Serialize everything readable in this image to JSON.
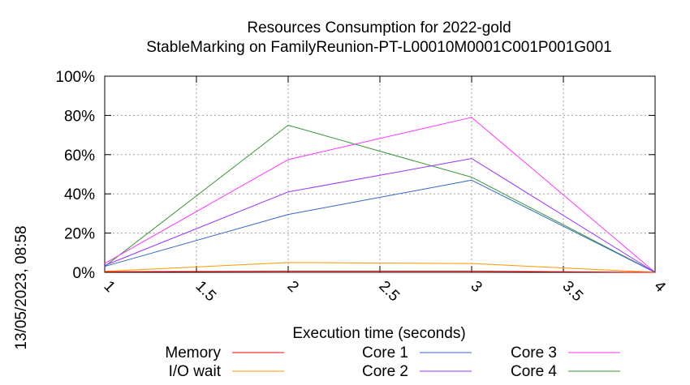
{
  "chart_data": {
    "type": "line",
    "title": "Resources Consumption for 2022-gold",
    "subtitle": "StableMarking on FamilyReunion-PT-L00010M0001C001P001G001",
    "xlabel": "Execution time (seconds)",
    "ylabel": "",
    "side_label": "13/05/2023, 08:58",
    "xlim": [
      1,
      4
    ],
    "ylim": [
      0,
      100
    ],
    "x_ticks": [
      "1",
      "1.5",
      "2",
      "2.5",
      "3",
      "3.5",
      "4"
    ],
    "x_tick_values": [
      1,
      1.5,
      2,
      2.5,
      3,
      3.5,
      4
    ],
    "y_ticks": [
      "0%",
      "20%",
      "40%",
      "60%",
      "80%",
      "100%"
    ],
    "y_tick_values": [
      0,
      20,
      40,
      60,
      80,
      100
    ],
    "grid": true,
    "legend_position": "bottom",
    "x": [
      1,
      2,
      3,
      4
    ],
    "series": [
      {
        "name": "Memory",
        "color": "#ff0000",
        "values": [
          0.3,
          0.6,
          0.6,
          0
        ]
      },
      {
        "name": "I/O wait",
        "color": "#ff9900",
        "values": [
          0.5,
          5,
          4.5,
          0
        ]
      },
      {
        "name": "Core 1",
        "color": "#3366cc",
        "values": [
          3,
          29.5,
          47,
          0
        ]
      },
      {
        "name": "Core 2",
        "color": "#9933ff",
        "values": [
          3.5,
          41,
          58,
          0
        ]
      },
      {
        "name": "Core 3",
        "color": "#ff33ff",
        "values": [
          4.5,
          57.5,
          79,
          0
        ]
      },
      {
        "name": "Core 4",
        "color": "#339933",
        "values": [
          3,
          75,
          48.5,
          0
        ]
      }
    ]
  }
}
